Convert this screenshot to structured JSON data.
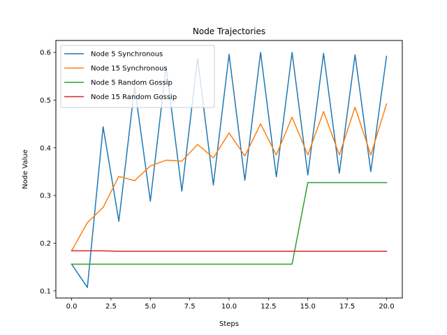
{
  "chart_data": {
    "type": "line",
    "title": "Node Trajectories",
    "xlabel": "Steps",
    "ylabel": "Node Value",
    "xlim": [
      -1.0,
      21.0
    ],
    "ylim": [
      0.085,
      0.625
    ],
    "xticks": [
      0,
      2.5,
      5,
      7.5,
      10,
      12.5,
      15,
      17.5,
      20
    ],
    "xtick_labels": [
      "0.0",
      "2.5",
      "5.0",
      "7.5",
      "10.0",
      "12.5",
      "15.0",
      "17.5",
      "20.0"
    ],
    "yticks": [
      0.1,
      0.2,
      0.3,
      0.4,
      0.5,
      0.6
    ],
    "ytick_labels": [
      "0.1",
      "0.2",
      "0.3",
      "0.4",
      "0.5",
      "0.6"
    ],
    "grid": false,
    "legend_position": "top-left",
    "x": [
      0,
      1,
      2,
      3,
      4,
      5,
      6,
      7,
      8,
      9,
      10,
      11,
      12,
      13,
      14,
      15,
      16,
      17,
      18,
      19,
      20
    ],
    "series": [
      {
        "name": "Node 5 Synchronous",
        "color": "#1f77b4",
        "values": [
          0.156,
          0.107,
          0.444,
          0.246,
          0.528,
          0.288,
          0.57,
          0.309,
          0.587,
          0.322,
          0.596,
          0.332,
          0.6,
          0.339,
          0.6,
          0.343,
          0.598,
          0.347,
          0.595,
          0.35,
          0.592
        ]
      },
      {
        "name": "Node 15 Synchronous",
        "color": "#ff7f0e",
        "values": [
          0.184,
          0.243,
          0.275,
          0.34,
          0.331,
          0.362,
          0.374,
          0.372,
          0.407,
          0.379,
          0.431,
          0.383,
          0.45,
          0.385,
          0.464,
          0.385,
          0.476,
          0.385,
          0.485,
          0.385,
          0.492
        ]
      },
      {
        "name": "Node 5 Random Gossip",
        "color": "#2ca02c",
        "values": [
          0.156,
          0.156,
          0.156,
          0.156,
          0.156,
          0.156,
          0.156,
          0.156,
          0.156,
          0.156,
          0.156,
          0.156,
          0.156,
          0.156,
          0.156,
          0.327,
          0.327,
          0.327,
          0.327,
          0.327,
          0.327
        ]
      },
      {
        "name": "Node 15 Random Gossip",
        "color": "#d62728",
        "values": [
          0.184,
          0.184,
          0.184,
          0.183,
          0.183,
          0.183,
          0.183,
          0.183,
          0.183,
          0.183,
          0.183,
          0.183,
          0.183,
          0.183,
          0.183,
          0.183,
          0.183,
          0.183,
          0.183,
          0.183,
          0.183
        ]
      }
    ]
  }
}
